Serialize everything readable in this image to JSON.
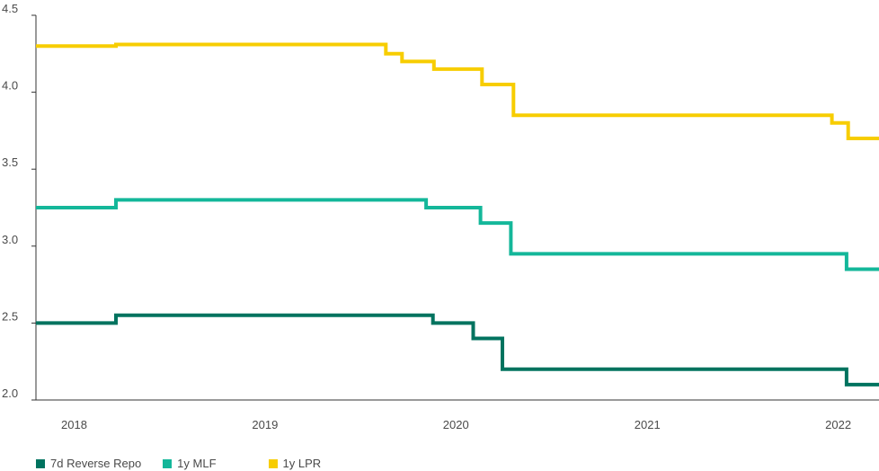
{
  "chart_data": {
    "type": "line",
    "step": true,
    "title": "",
    "xlabel": "",
    "ylabel": "",
    "ylim": [
      2.0,
      4.5
    ],
    "yticks": [
      "2.0",
      "2.5",
      "3.0",
      "3.5",
      "4.0",
      "4.5"
    ],
    "xlim": [
      "2017-10-20",
      "2022-03-20"
    ],
    "xticks": [
      {
        "label": "2018",
        "date": "2018-01-01"
      },
      {
        "label": "2019",
        "date": "2019-01-01"
      },
      {
        "label": "2020",
        "date": "2020-01-01"
      },
      {
        "label": "2021",
        "date": "2021-01-01"
      },
      {
        "label": "2022",
        "date": "2022-01-01"
      }
    ],
    "grid": false,
    "legend_position": "bottom-left",
    "series": [
      {
        "name": "7d Reverse Repo",
        "color": "#00735f",
        "points": [
          [
            "2017-10-20",
            2.5
          ],
          [
            "2018-03-22",
            2.55
          ],
          [
            "2019-11-18",
            2.5
          ],
          [
            "2020-02-03",
            2.4
          ],
          [
            "2020-03-30",
            2.2
          ],
          [
            "2022-01-17",
            2.1
          ],
          [
            "2022-03-20",
            2.1
          ]
        ]
      },
      {
        "name": "1y MLF",
        "color": "#14b79a",
        "points": [
          [
            "2017-10-20",
            3.25
          ],
          [
            "2018-03-22",
            3.3
          ],
          [
            "2019-11-05",
            3.25
          ],
          [
            "2020-02-17",
            3.15
          ],
          [
            "2020-04-15",
            2.95
          ],
          [
            "2022-01-17",
            2.85
          ],
          [
            "2022-03-20",
            2.85
          ]
        ]
      },
      {
        "name": "1y LPR",
        "color": "#f7cd00",
        "points": [
          [
            "2017-10-20",
            4.3
          ],
          [
            "2018-03-22",
            4.31
          ],
          [
            "2019-08-20",
            4.25
          ],
          [
            "2019-09-20",
            4.2
          ],
          [
            "2019-11-20",
            4.15
          ],
          [
            "2020-02-20",
            4.05
          ],
          [
            "2020-04-20",
            3.85
          ],
          [
            "2021-12-20",
            3.8
          ],
          [
            "2022-01-20",
            3.7
          ],
          [
            "2022-03-20",
            3.7
          ]
        ]
      }
    ]
  }
}
